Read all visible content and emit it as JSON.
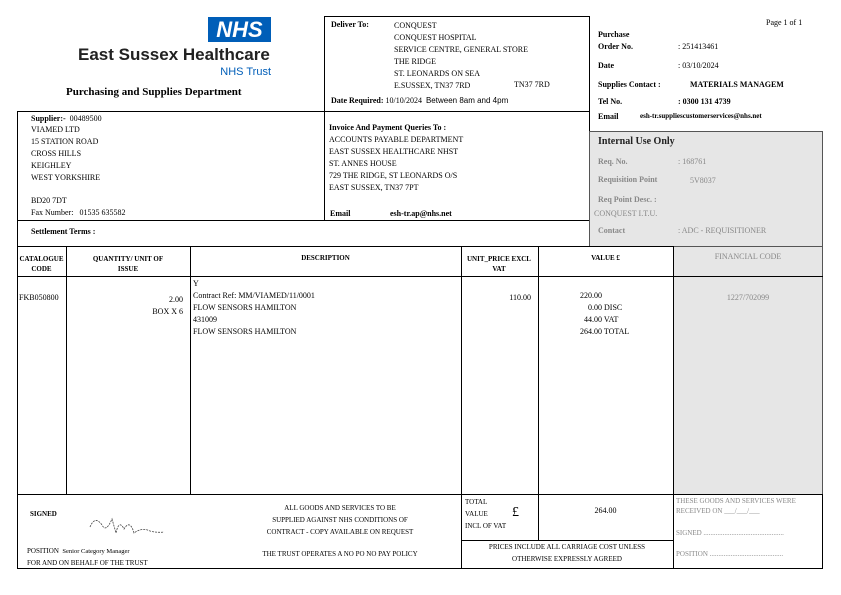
{
  "logo": {
    "nhs": "NHS",
    "org": "East Sussex Healthcare",
    "trust": "NHS Trust",
    "department": "Purchasing and Supplies Department"
  },
  "page": "Page 1 of 1",
  "deliver": {
    "label": "Deliver To:",
    "lines": [
      "CONQUEST",
      "CONQUEST HOSPITAL",
      "SERVICE CENTRE, GENERAL STORE",
      "THE RIDGE",
      "ST. LEONARDS ON SEA",
      "E.SUSSEX, TN37 7RD"
    ],
    "postcode": "TN37 7RD",
    "date_label": "Date Required:",
    "date": "10/10/2024",
    "window": "Between 8am and 4pm"
  },
  "order": {
    "purchase_label": "Purchase",
    "order_label": "Order No.",
    "order_no": ": 251413461",
    "date_label": "Date",
    "date": ": 03/10/2024",
    "contact_label": "Supplies Contact :",
    "contact": "MATERIALS MANAGEM",
    "tel_label": "Tel No.",
    "tel": ": 0300 131 4739",
    "email_label": "Email",
    "email": "esh-tr.suppliescustomerservices@nhs.net"
  },
  "supplier": {
    "label": "Supplier:-",
    "code": "00489500",
    "lines": [
      "VIAMED LTD",
      "15 STATION ROAD",
      "CROSS HILLS",
      "KEIGHLEY",
      "WEST YORKSHIRE"
    ],
    "postcode": "BD20 7DT",
    "fax_label": "Fax Number:",
    "fax": "01535 635582"
  },
  "invoice": {
    "label": "Invoice And Payment Queries To :",
    "lines": [
      "ACCOUNTS PAYABLE DEPARTMENT",
      "EAST SUSSEX HEALTHCARE NHST",
      "ST. ANNES HOUSE",
      "729 THE RIDGE, ST LEONARDS O/S",
      "EAST SUSSEX, TN37 7PT"
    ],
    "email_label": "Email",
    "email": "esh-tr.ap@nhs.net"
  },
  "settlement": "Settlement Terms :",
  "internal": {
    "title": "Internal Use Only",
    "req_label": "Req. No.",
    "req": ": 168761",
    "point_label": "Requisition Point",
    "point": "5V8037",
    "desc_label": "Req Point Desc. :",
    "desc": "CONQUEST I.T.U.",
    "contact_label": "Contact",
    "contact": ": ADC - REQUISITIONER"
  },
  "table": {
    "headers": [
      "CATALOGUE CODE",
      "QUANTITY/ UNIT OF ISSUE",
      "DESCRIPTION",
      "UNIT_PRICE EXCL VAT",
      "VALUE £",
      "FINANCIAL CODE"
    ],
    "row": {
      "code": "FKB050800",
      "qty": "2.00",
      "unit": "BOX X 6",
      "desc": [
        "Y",
        "Contract Ref: MM/VIAMED/11/0001",
        "FLOW SENSORS HAMILTON",
        "431009",
        "FLOW SENSORS HAMILTON"
      ],
      "price": "110.00",
      "values": [
        [
          "220.00",
          ""
        ],
        [
          "0.00",
          "DISC"
        ],
        [
          "44.00",
          "VAT"
        ],
        [
          "264.00",
          "TOTAL"
        ]
      ],
      "fin": "1227/702099"
    }
  },
  "footer": {
    "signed": "SIGNED",
    "position_label": "POSITION",
    "position": "Senior Category Manager",
    "behalf": "FOR AND ON BEHALF OF THE TRUST",
    "terms": [
      "ALL GOODS AND SERVICES TO BE",
      "SUPPLIED AGAINST NHS CONDITIONS OF",
      "CONTRACT - COPY AVAILABLE ON REQUEST"
    ],
    "policy": "THE TRUST OPERATES A NO PO NO PAY POLICY",
    "total_label": [
      "TOTAL",
      "VALUE",
      "INCL OF VAT"
    ],
    "pound": "£",
    "total": "264.00",
    "prices": [
      "PRICES INCLUDE ALL CARRIAGE COST UNLESS",
      "OTHERWISE EXPRESSLY AGREED"
    ],
    "received": "THESE GOODS AND SERVICES WERE RECEIVED ON ___/___/___",
    "signed2": "SIGNED ..............................................",
    "position2": "POSITION .........................................."
  }
}
